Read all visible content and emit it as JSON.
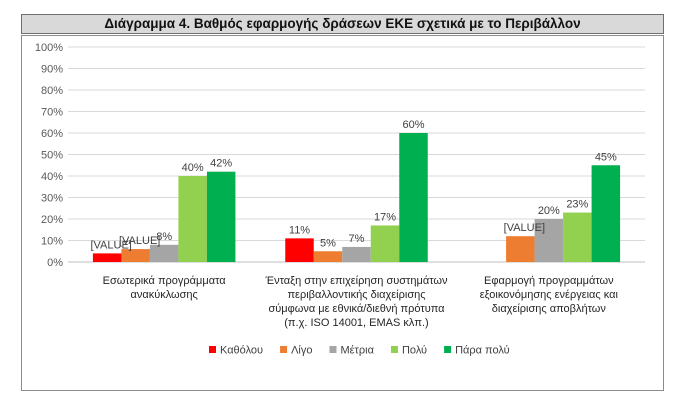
{
  "chart_data": {
    "type": "bar",
    "title": "Διάγραμμα 4. Βαθμός εφαρμογής δράσεων ΕΚΕ σχετικά με το Περιβάλλον",
    "categories": [
      [
        "Εσωτερικά προγράμματα",
        "ανακύκλωσης"
      ],
      [
        "Ένταξη στην επιχείρηση συστημάτων",
        "περιβαλλοντικής διαχείρισης",
        "σύμφωνα με εθνικά/διεθνή πρότυπα",
        "(π.χ. ISO 14001, EMAS κλπ.)"
      ],
      [
        "Εφαρμογή προγραμμάτων",
        "εξοικονόμησης ενέργειας και",
        "διαχείρισης αποβλήτων"
      ]
    ],
    "series": [
      {
        "name": "Καθόλου",
        "color": "#ff0000",
        "values": [
          4,
          11,
          0
        ],
        "labels": [
          "[VALUE]",
          "11%",
          ""
        ]
      },
      {
        "name": "Λίγο",
        "color": "#ed7d31",
        "values": [
          6,
          5,
          12
        ],
        "labels": [
          "[VALUE]",
          "5%",
          "[VALUE]"
        ]
      },
      {
        "name": "Μέτρια",
        "color": "#a5a5a5",
        "values": [
          8,
          7,
          20
        ],
        "labels": [
          "8%",
          "7%",
          "20%"
        ]
      },
      {
        "name": "Πολύ",
        "color": "#92d050",
        "values": [
          40,
          17,
          23
        ],
        "labels": [
          "40%",
          "17%",
          "23%"
        ]
      },
      {
        "name": "Πάρα πολύ",
        "color": "#00b050",
        "values": [
          42,
          60,
          45
        ],
        "labels": [
          "42%",
          "60%",
          "45%"
        ]
      }
    ],
    "yticks": [
      "0%",
      "10%",
      "20%",
      "30%",
      "40%",
      "50%",
      "60%",
      "70%",
      "80%",
      "90%",
      "100%"
    ],
    "ylim": [
      0,
      100
    ],
    "grid": true,
    "legend": "bottom"
  }
}
